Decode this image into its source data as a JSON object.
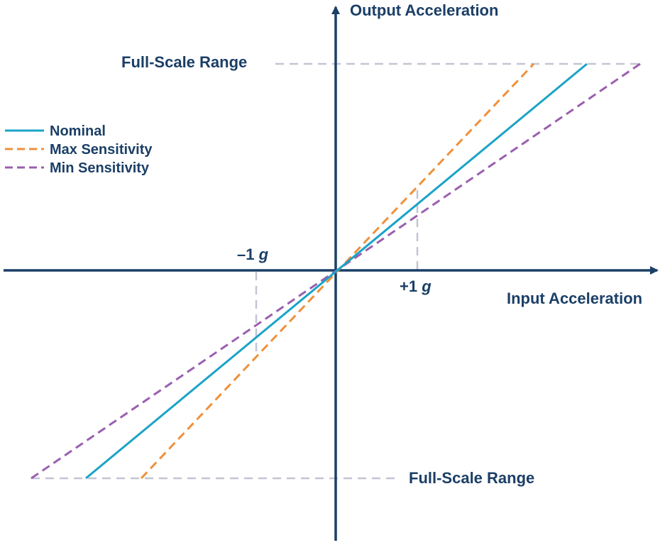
{
  "axes": {
    "x_label": "Input Acceleration",
    "y_label": "Output Acceleration"
  },
  "reference": {
    "full_scale_top_label": "Full-Scale Range",
    "full_scale_bottom_label": "Full-Scale Range",
    "minus_one_g_number": "–1",
    "plus_one_g_number": "+1",
    "g_unit": "g"
  },
  "legend": {
    "placement": "left",
    "items": [
      {
        "label": "Nominal",
        "color": "#1aa3c8",
        "dash": "solid"
      },
      {
        "label": "Max Sensitivity",
        "color": "#f0903a",
        "dash": "dashed"
      },
      {
        "label": "Min Sensitivity",
        "color": "#9a5fb0",
        "dash": "dashed"
      }
    ]
  },
  "colors": {
    "axis": "#1b3f66",
    "text": "#1b3f66",
    "reference_dash": "#c4c4d4",
    "nominal": "#1aa3c8",
    "max_sensitivity": "#f0903a",
    "min_sensitivity": "#9a5fb0"
  }
}
